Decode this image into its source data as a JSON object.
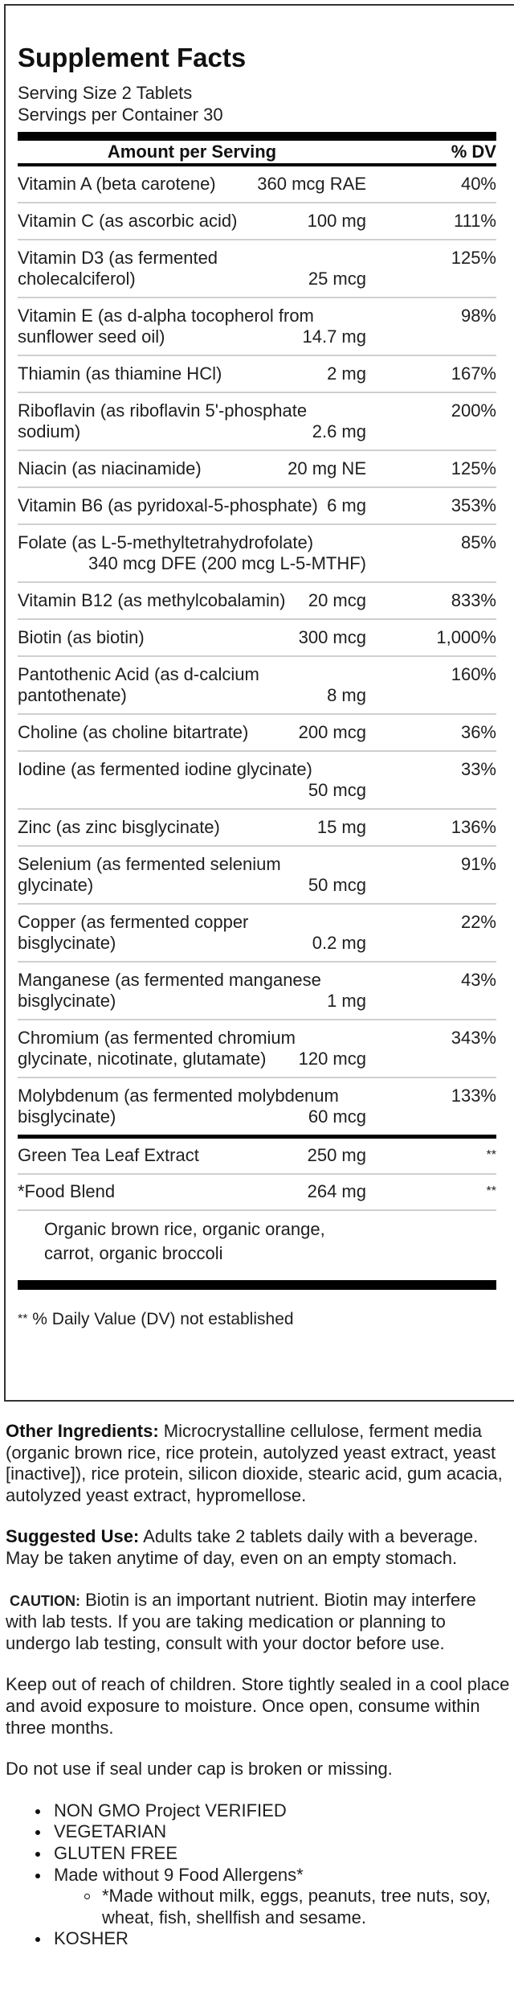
{
  "facts": {
    "title": "Supplement Facts",
    "serving_size": "Serving Size 2 Tablets",
    "servings_per_container": "Servings per Container 30",
    "header_amount": "Amount per Serving",
    "header_dv": "% DV",
    "nutrients": [
      {
        "name": "Vitamin A (beta carotene)",
        "amount": "360 mcg RAE",
        "dv": "40%"
      },
      {
        "name": "Vitamin C (as ascorbic acid)",
        "amount": "100 mg",
        "dv": "111%"
      },
      {
        "name": "Vitamin D3 (as fermented\ncholecalciferol)",
        "amount": "25 mcg",
        "dv": "125%"
      },
      {
        "name": "Vitamin E (as d-alpha tocopherol from\nsunflower seed oil)",
        "amount": "14.7 mg",
        "dv": "98%"
      },
      {
        "name": "Thiamin (as thiamine HCl)",
        "amount": "2 mg",
        "dv": "167%"
      },
      {
        "name": "Riboflavin (as riboflavin 5'-phosphate\nsodium)",
        "amount": "2.6 mg",
        "dv": "200%"
      },
      {
        "name": "Niacin (as niacinamide)",
        "amount": "20 mg NE",
        "dv": "125%"
      },
      {
        "name": "Vitamin B6 (as pyridoxal-5-phosphate)",
        "amount": "6 mg",
        "dv": "353%"
      },
      {
        "name": "Folate (as L-5-methyltetrahydrofolate)",
        "amount": "340 mcg DFE (200 mcg L-5-MTHF)",
        "dv": "85%"
      },
      {
        "name": "Vitamin B12 (as methylcobalamin)",
        "amount": "20 mcg",
        "dv": "833%"
      },
      {
        "name": "Biotin (as biotin)",
        "amount": "300 mcg",
        "dv": "1,000%"
      },
      {
        "name": "Pantothenic Acid (as d-calcium\npantothenate)",
        "amount": "8 mg",
        "dv": "160%"
      },
      {
        "name": "Choline (as choline bitartrate)",
        "amount": "200 mcg",
        "dv": "36%"
      },
      {
        "name": "Iodine (as fermented iodine glycinate)",
        "amount": "50 mcg",
        "dv": "33%"
      },
      {
        "name": "Zinc (as zinc bisglycinate)",
        "amount": "15 mg",
        "dv": "136%"
      },
      {
        "name": "Selenium (as fermented selenium\nglycinate)",
        "amount": "50 mcg",
        "dv": "91%"
      },
      {
        "name": "Copper (as fermented copper\nbisglycinate)",
        "amount": "0.2 mg",
        "dv": "22%"
      },
      {
        "name": "Manganese (as fermented manganese\nbisglycinate)",
        "amount": "1 mg",
        "dv": "43%"
      },
      {
        "name": "Chromium (as fermented chromium\nglycinate, nicotinate, glutamate)",
        "amount": "120 mcg",
        "dv": "343%"
      },
      {
        "name": "Molybdenum (as fermented molybdenum\nbisglycinate)",
        "amount": "60 mcg",
        "dv": "133%"
      }
    ],
    "other": [
      {
        "name": "Green Tea Leaf Extract",
        "amount": "250 mg",
        "dv": "**"
      },
      {
        "name": "*Food Blend",
        "amount": "264 mg",
        "dv": "**"
      }
    ],
    "blend_line1": "Organic brown rice, organic orange,",
    "blend_line2": "carrot, organic broccoli",
    "footnote_stars": "**",
    "footnote_text": " % Daily Value (DV) not established"
  },
  "info": {
    "other_ingredients_label": "Other Ingredients:",
    "other_ingredients": " Microcrystalline cellulose, ferment media (organic brown rice, rice protein, autolyzed yeast extract, yeast [inactive]), rice protein, silicon dioxide, stearic acid, gum acacia, autolyzed yeast extract, hypromellose.",
    "suggested_use_label": "Suggested Use:",
    "suggested_use": " Adults take 2 tablets daily with a beverage. May be taken anytime of day, even on an empty stomach.",
    "caution_label": "CAUTION:",
    "caution": " Biotin is an important nutrient. Biotin may interfere with lab tests. If you are taking medication or planning to undergo lab testing, consult with your doctor before use.",
    "storage": "Keep out of reach of children. Store tightly sealed in a cool place and avoid exposure to moisture. Once open, consume within three months.",
    "seal": "Do not use if seal under cap is broken or missing.",
    "badges": [
      "NON GMO Project VERIFIED",
      "VEGETARIAN",
      "GLUTEN FREE",
      "Made without 9 Food Allergens*",
      "KOSHER"
    ],
    "allergen_note": "*Made without milk, eggs, peanuts, tree nuts, soy, wheat, fish, shellfish and sesame."
  }
}
